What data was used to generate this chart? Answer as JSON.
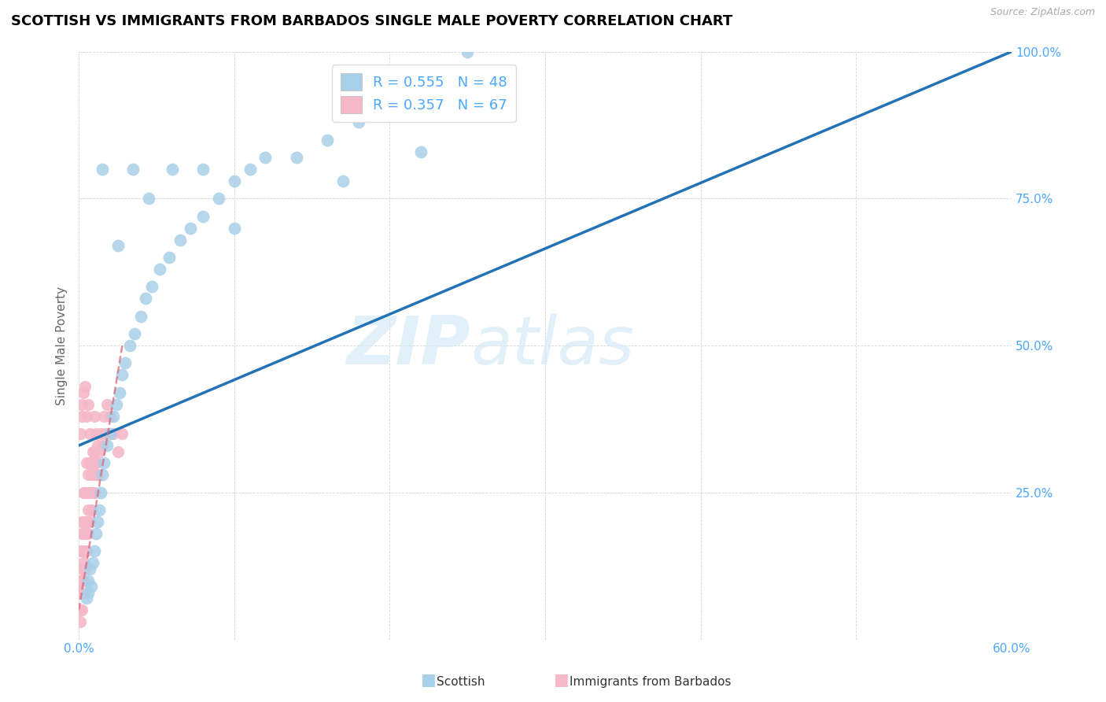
{
  "title": "SCOTTISH VS IMMIGRANTS FROM BARBADOS SINGLE MALE POVERTY CORRELATION CHART",
  "source": "Source: ZipAtlas.com",
  "ylabel_label": "Single Male Poverty",
  "xlim": [
    0.0,
    0.6
  ],
  "ylim": [
    0.0,
    1.0
  ],
  "legend_r1": "R = 0.555",
  "legend_n1": "N = 48",
  "legend_r2": "R = 0.357",
  "legend_n2": "N = 67",
  "scottish_color": "#a8cfe8",
  "barbados_color": "#f4b8c8",
  "trendline_blue": "#2272b5",
  "trendline_pink": "#d9687a",
  "watermark_zip": "ZIP",
  "watermark_atlas": "atlas",
  "tick_color": "#4da6ff",
  "scottish_x": [
    0.005,
    0.006,
    0.006,
    0.007,
    0.008,
    0.009,
    0.01,
    0.011,
    0.012,
    0.013,
    0.014,
    0.015,
    0.016,
    0.018,
    0.02,
    0.022,
    0.024,
    0.026,
    0.028,
    0.03,
    0.033,
    0.036,
    0.04,
    0.043,
    0.047,
    0.052,
    0.058,
    0.065,
    0.072,
    0.08,
    0.09,
    0.1,
    0.11,
    0.12,
    0.14,
    0.16,
    0.18,
    0.2,
    0.22,
    0.015,
    0.025,
    0.035,
    0.045,
    0.06,
    0.08,
    0.1,
    0.17,
    0.25
  ],
  "scottish_y": [
    0.07,
    0.08,
    0.1,
    0.12,
    0.09,
    0.13,
    0.15,
    0.18,
    0.2,
    0.22,
    0.25,
    0.28,
    0.3,
    0.33,
    0.35,
    0.38,
    0.4,
    0.42,
    0.45,
    0.47,
    0.5,
    0.52,
    0.55,
    0.58,
    0.6,
    0.63,
    0.65,
    0.68,
    0.7,
    0.72,
    0.75,
    0.78,
    0.8,
    0.82,
    0.82,
    0.85,
    0.88,
    0.9,
    0.83,
    0.8,
    0.67,
    0.8,
    0.75,
    0.8,
    0.8,
    0.7,
    0.78,
    1.0
  ],
  "barbados_x": [
    0.001,
    0.001,
    0.001,
    0.001,
    0.001,
    0.002,
    0.002,
    0.002,
    0.002,
    0.002,
    0.002,
    0.002,
    0.003,
    0.003,
    0.003,
    0.003,
    0.003,
    0.003,
    0.004,
    0.004,
    0.004,
    0.004,
    0.005,
    0.005,
    0.005,
    0.005,
    0.005,
    0.006,
    0.006,
    0.006,
    0.007,
    0.007,
    0.007,
    0.008,
    0.008,
    0.009,
    0.009,
    0.01,
    0.01,
    0.01,
    0.011,
    0.011,
    0.012,
    0.012,
    0.013,
    0.014,
    0.015,
    0.016,
    0.017,
    0.018,
    0.02,
    0.022,
    0.025,
    0.028,
    0.001,
    0.002,
    0.002,
    0.003,
    0.004,
    0.005,
    0.006,
    0.007,
    0.008,
    0.009,
    0.01,
    0.011,
    0.012
  ],
  "barbados_y": [
    0.03,
    0.05,
    0.08,
    0.1,
    0.15,
    0.05,
    0.08,
    0.1,
    0.12,
    0.15,
    0.18,
    0.2,
    0.1,
    0.13,
    0.15,
    0.18,
    0.2,
    0.25,
    0.12,
    0.15,
    0.2,
    0.25,
    0.15,
    0.18,
    0.2,
    0.25,
    0.3,
    0.18,
    0.22,
    0.28,
    0.2,
    0.25,
    0.3,
    0.22,
    0.28,
    0.25,
    0.32,
    0.28,
    0.32,
    0.38,
    0.3,
    0.35,
    0.28,
    0.33,
    0.32,
    0.35,
    0.33,
    0.38,
    0.35,
    0.4,
    0.38,
    0.35,
    0.32,
    0.35,
    0.35,
    0.38,
    0.4,
    0.42,
    0.43,
    0.38,
    0.4,
    0.35,
    0.3,
    0.28,
    0.25,
    0.3,
    0.28
  ],
  "trendline_s_x0": 0.0,
  "trendline_s_y0": 0.33,
  "trendline_s_x1": 0.6,
  "trendline_s_y1": 1.0,
  "trendline_b_x0": 0.0,
  "trendline_b_y0": 0.05,
  "trendline_b_x1": 0.028,
  "trendline_b_y1": 0.5
}
